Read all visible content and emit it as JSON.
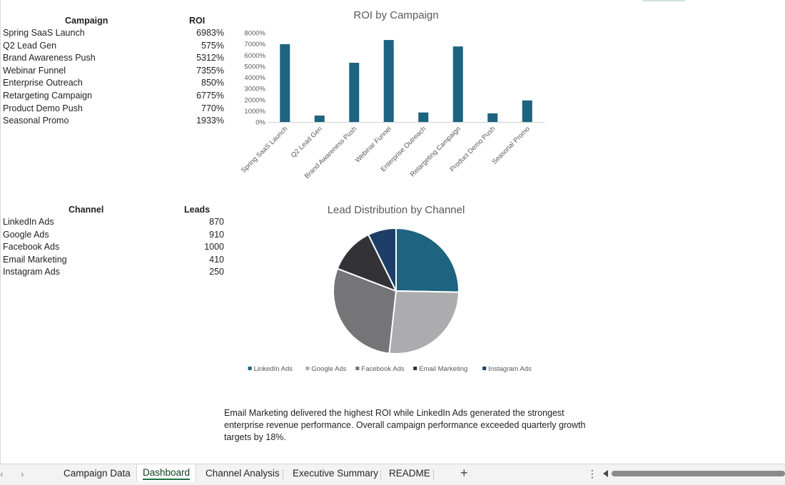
{
  "roi_table": {
    "header_campaign": "Campaign",
    "header_roi": "ROI",
    "rows": [
      {
        "name": "Spring SaaS Launch",
        "value": "6983%"
      },
      {
        "name": "Q2 Lead Gen",
        "value": "575%"
      },
      {
        "name": "Brand Awareness Push",
        "value": "5312%"
      },
      {
        "name": "Webinar Funnel",
        "value": "7355%"
      },
      {
        "name": "Enterprise Outreach",
        "value": "850%"
      },
      {
        "name": "Retargeting Campaign",
        "value": "6775%"
      },
      {
        "name": "Product Demo Push",
        "value": "770%"
      },
      {
        "name": "Seasonal Promo",
        "value": "1933%"
      }
    ]
  },
  "leads_table": {
    "header_channel": "Channel",
    "header_leads": "Leads",
    "rows": [
      {
        "name": "LinkedIn Ads",
        "value": "870"
      },
      {
        "name": "Google Ads",
        "value": "910"
      },
      {
        "name": "Facebook Ads",
        "value": "1000"
      },
      {
        "name": "Email Marketing",
        "value": "410"
      },
      {
        "name": "Instagram Ads",
        "value": "250"
      }
    ]
  },
  "chart_data": [
    {
      "type": "bar",
      "title": "ROI by Campaign",
      "categories": [
        "Spring SaaS Launch",
        "Q2 Lead Gen",
        "Brand Awareness Push",
        "Webinar Funnel",
        "Enterprise Outreach",
        "Retargeting Campaign",
        "Product Demo Push",
        "Seasonal Promo"
      ],
      "values": [
        6983,
        575,
        5312,
        7355,
        850,
        6775,
        770,
        1933
      ],
      "ylim": [
        0,
        8000
      ],
      "yticks": [
        "0%",
        "1000%",
        "2000%",
        "3000%",
        "4000%",
        "5000%",
        "6000%",
        "7000%",
        "8000%"
      ],
      "color": "#1e6380",
      "grid": false
    },
    {
      "type": "pie",
      "title": "Lead Distribution by Channel",
      "labels": [
        "LinkedIn Ads",
        "Google Ads",
        "Facebook Ads",
        "Email Marketing",
        "Instagram Ads"
      ],
      "values": [
        870,
        910,
        1000,
        410,
        250
      ],
      "colors": [
        "#1e6380",
        "#acabae",
        "#757477",
        "#333237",
        "#1d3e66"
      ],
      "legend": "bottom"
    }
  ],
  "summary_text": "Email Marketing delivered the highest ROI while LinkedIn Ads generated the strongest enterprise revenue performance. Overall campaign performance exceeded quarterly growth targets by 18%.",
  "tabs": [
    "Campaign Data",
    "Dashboard",
    "Channel Analysis",
    "Executive Summary",
    "README"
  ],
  "active_tab": "Dashboard",
  "add_tab_label": "+",
  "nav": {
    "prev": "‹",
    "next": "›",
    "more": "⋮"
  }
}
